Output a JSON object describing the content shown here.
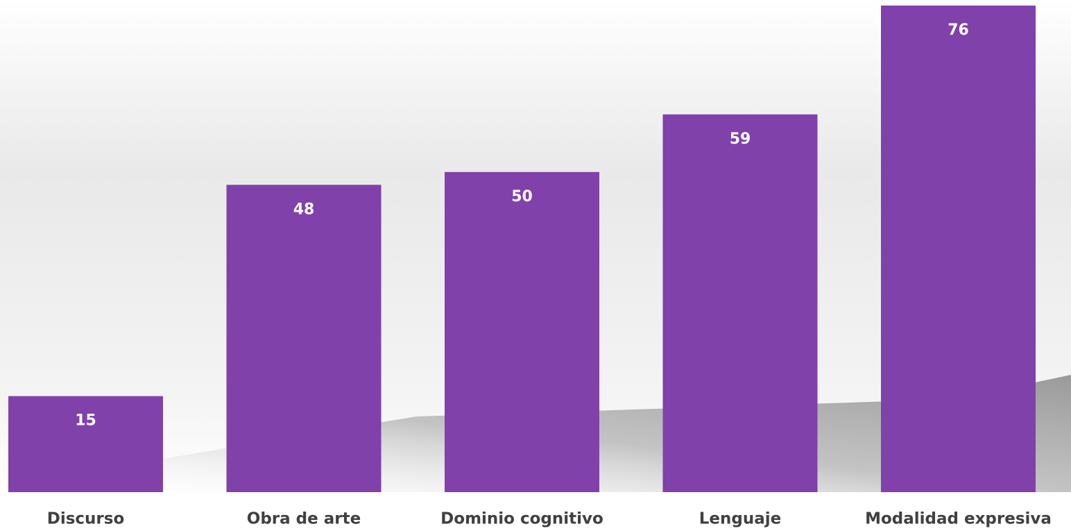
{
  "chart_data": {
    "type": "bar",
    "categories": [
      "Discurso",
      "Obra de arte",
      "Dominio cognitivo",
      "Lenguaje",
      "Modalidad expresiva"
    ],
    "values": [
      15,
      48,
      50,
      59,
      76
    ],
    "color": "#8041ab"
  }
}
